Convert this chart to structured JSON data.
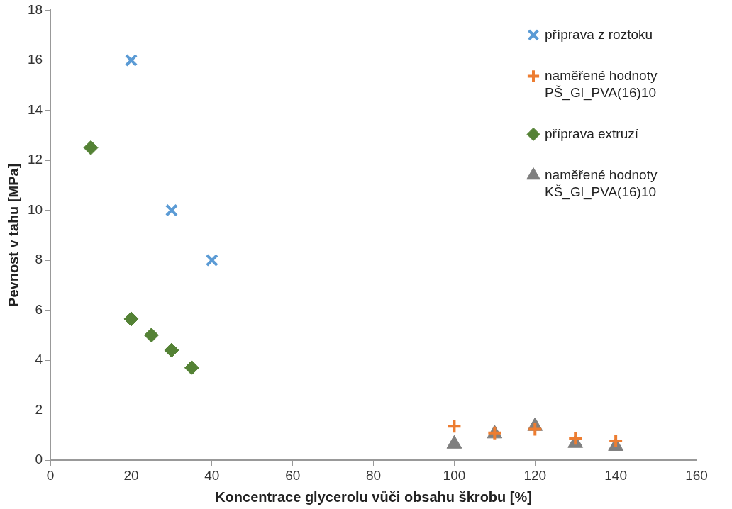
{
  "chart_data": {
    "type": "scatter",
    "xlabel": "Koncentrace glycerolu vůči obsahu škrobu [%]",
    "ylabel": "Pevnost v tahu [MPa]",
    "xlim": [
      0,
      160
    ],
    "xticks": [
      0,
      20,
      40,
      60,
      80,
      100,
      120,
      140,
      160
    ],
    "ylim": [
      0,
      18
    ],
    "yticks": [
      0,
      2,
      4,
      6,
      8,
      10,
      12,
      14,
      16,
      18
    ],
    "grid": false,
    "legend": "top right",
    "series": [
      {
        "name": "příprava z roztoku",
        "color": "#5b9bd5",
        "marker": "cross",
        "x": [
          20,
          30,
          40
        ],
        "values": [
          16,
          10,
          8
        ]
      },
      {
        "name": "naměřené hodnoty PŠ_Gl_PVA(16)10",
        "color": "#ed7d31",
        "marker": "plus",
        "x": [
          100,
          110,
          120,
          130,
          140
        ],
        "values": [
          1.36,
          1.09,
          1.24,
          0.88,
          0.77
        ]
      },
      {
        "name": "příprava extruzí",
        "color": "#548235",
        "marker": "diamond",
        "x": [
          10,
          20,
          25,
          30,
          35
        ],
        "values": [
          12.5,
          5.65,
          5.0,
          4.4,
          3.7
        ]
      },
      {
        "name": "naměřené hodnoty KŠ_Gl_PVA(16)10",
        "color": "#7f7f7f",
        "marker": "triangle",
        "x": [
          100,
          110,
          120,
          130,
          140
        ],
        "values": [
          0.65,
          1.06,
          1.36,
          0.68,
          0.56
        ]
      }
    ]
  }
}
